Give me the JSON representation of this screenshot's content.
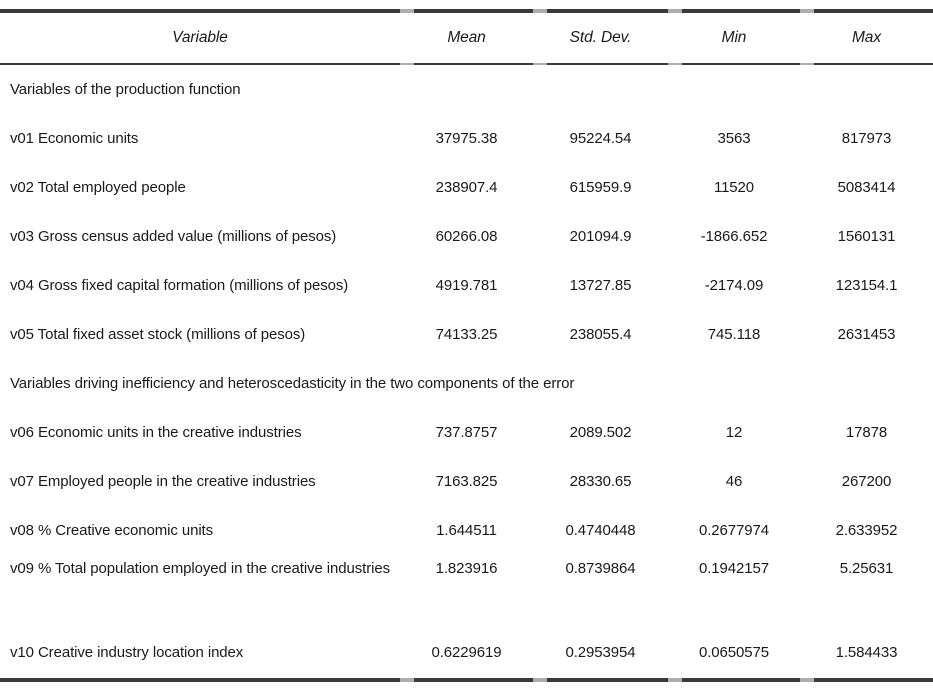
{
  "page": {
    "background": "#ffffff",
    "text_color": "#1a1a1a",
    "rule_color": "#3a3a3a",
    "rule_gap_color": "#adadad"
  },
  "chart_data": {
    "type": "table",
    "columns": [
      "Variable",
      "Mean",
      "Std. Dev.",
      "Min",
      "Max"
    ],
    "rows": [
      [
        "Variables of the production function"
      ],
      [
        "v01 Economic units",
        37975.38,
        95224.54,
        3563,
        817973
      ],
      [
        "v02 Total employed people",
        238907.4,
        615959.9,
        11520,
        5083414
      ],
      [
        "v03 Gross census added value (millions of pesos)",
        60266.08,
        201094.9,
        -1866.652,
        1560131
      ],
      [
        "v04 Gross fixed capital formation (millions of pesos)",
        4919.781,
        13727.85,
        -2174.09,
        123154.1
      ],
      [
        "v05 Total fixed asset stock (millions of pesos)",
        74133.25,
        238055.4,
        745.118,
        2631453
      ],
      [
        "Variables driving inefficiency and heteroscedasticity in the two components of the error"
      ],
      [
        "v06 Economic units in the creative industries",
        737.8757,
        2089.502,
        12,
        17878
      ],
      [
        "v07 Employed people in the creative industries",
        7163.825,
        28330.65,
        46,
        267200
      ],
      [
        "v08 % Creative economic units",
        1.644511,
        0.4740448,
        0.2677974,
        2.633952
      ],
      [
        "v09 % Total population employed in the creative industries",
        1.823916,
        0.8739864,
        0.1942157,
        5.25631
      ],
      [
        "v10 Creative industry location index",
        0.6229619,
        0.2953954,
        0.0650575,
        1.584433
      ]
    ],
    "section_header_rows": [
      0,
      6
    ],
    "layout": {
      "value_alignment": "center",
      "header_style": "italic",
      "grid": "horizontal rules only, light gaps at column boundaries"
    }
  }
}
